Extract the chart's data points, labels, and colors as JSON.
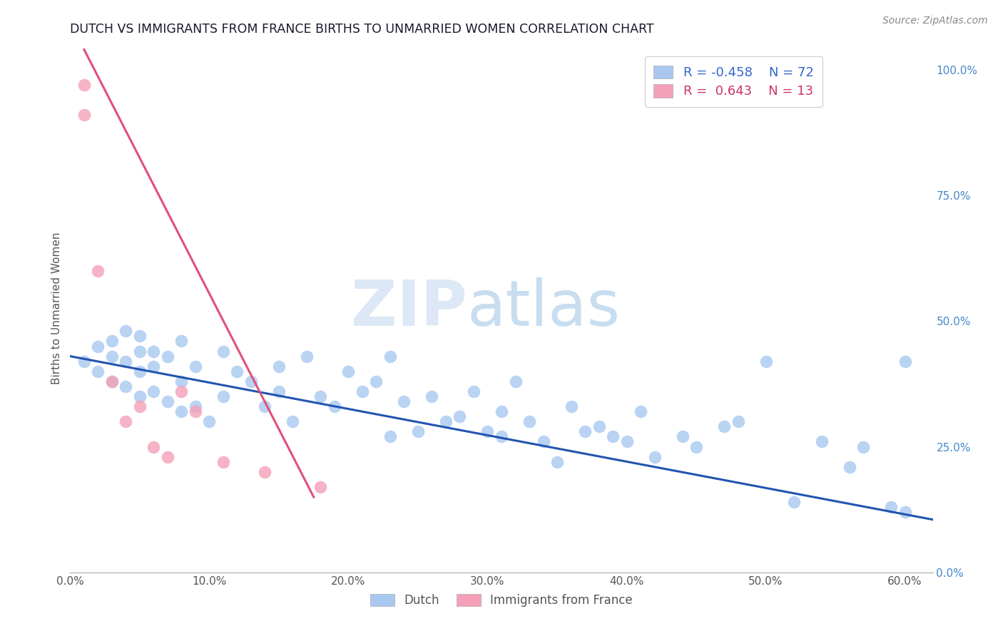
{
  "title": "DUTCH VS IMMIGRANTS FROM FRANCE BIRTHS TO UNMARRIED WOMEN CORRELATION CHART",
  "source": "Source: ZipAtlas.com",
  "ylabel": "Births to Unmarried Women",
  "xlim": [
    0.0,
    0.62
  ],
  "ylim": [
    0.0,
    1.05
  ],
  "x_ticks": [
    0.0,
    0.1,
    0.2,
    0.3,
    0.4,
    0.5,
    0.6
  ],
  "x_tick_labels": [
    "0.0%",
    "10.0%",
    "20.0%",
    "30.0%",
    "40.0%",
    "50.0%",
    "60.0%"
  ],
  "y_ticks_right": [
    0.0,
    0.25,
    0.5,
    0.75,
    1.0
  ],
  "y_tick_labels_right": [
    "0.0%",
    "25.0%",
    "50.0%",
    "75.0%",
    "100.0%"
  ],
  "legend_r_dutch": "-0.458",
  "legend_n_dutch": "72",
  "legend_r_france": " 0.643",
  "legend_n_france": "13",
  "dutch_color": "#a8c8f0",
  "france_color": "#f4a0b8",
  "dutch_line_color": "#2255b0",
  "france_line_color": "#e0507a",
  "background_color": "#ffffff",
  "grid_color": "#c8d4e8",
  "watermark_zip": "ZIP",
  "watermark_atlas": "atlas",
  "dutch_scatter_x": [
    0.01,
    0.02,
    0.02,
    0.03,
    0.03,
    0.03,
    0.04,
    0.04,
    0.04,
    0.05,
    0.05,
    0.05,
    0.05,
    0.06,
    0.06,
    0.06,
    0.07,
    0.07,
    0.08,
    0.08,
    0.08,
    0.09,
    0.09,
    0.1,
    0.11,
    0.11,
    0.12,
    0.13,
    0.14,
    0.15,
    0.15,
    0.16,
    0.17,
    0.18,
    0.19,
    0.2,
    0.21,
    0.22,
    0.23,
    0.23,
    0.24,
    0.25,
    0.26,
    0.27,
    0.28,
    0.29,
    0.3,
    0.31,
    0.31,
    0.32,
    0.33,
    0.34,
    0.35,
    0.36,
    0.37,
    0.38,
    0.39,
    0.4,
    0.41,
    0.42,
    0.44,
    0.45,
    0.47,
    0.48,
    0.5,
    0.52,
    0.54,
    0.56,
    0.57,
    0.59,
    0.6,
    0.6
  ],
  "dutch_scatter_y": [
    0.42,
    0.4,
    0.45,
    0.38,
    0.43,
    0.46,
    0.37,
    0.42,
    0.48,
    0.35,
    0.4,
    0.44,
    0.47,
    0.36,
    0.41,
    0.44,
    0.34,
    0.43,
    0.32,
    0.38,
    0.46,
    0.33,
    0.41,
    0.3,
    0.35,
    0.44,
    0.4,
    0.38,
    0.33,
    0.41,
    0.36,
    0.3,
    0.43,
    0.35,
    0.33,
    0.4,
    0.36,
    0.38,
    0.27,
    0.43,
    0.34,
    0.28,
    0.35,
    0.3,
    0.31,
    0.36,
    0.28,
    0.32,
    0.27,
    0.38,
    0.3,
    0.26,
    0.22,
    0.33,
    0.28,
    0.29,
    0.27,
    0.26,
    0.32,
    0.23,
    0.27,
    0.25,
    0.29,
    0.3,
    0.42,
    0.14,
    0.26,
    0.21,
    0.25,
    0.13,
    0.12,
    0.42
  ],
  "france_scatter_x": [
    0.01,
    0.01,
    0.02,
    0.03,
    0.04,
    0.05,
    0.06,
    0.07,
    0.08,
    0.09,
    0.11,
    0.14,
    0.18
  ],
  "france_scatter_y": [
    0.97,
    0.91,
    0.6,
    0.38,
    0.3,
    0.33,
    0.25,
    0.23,
    0.36,
    0.32,
    0.22,
    0.2,
    0.17
  ],
  "dutch_trend_x": [
    0.0,
    0.62
  ],
  "dutch_trend_y": [
    0.43,
    0.105
  ],
  "france_trend_x": [
    0.01,
    0.175
  ],
  "france_trend_y": [
    1.04,
    0.15
  ]
}
